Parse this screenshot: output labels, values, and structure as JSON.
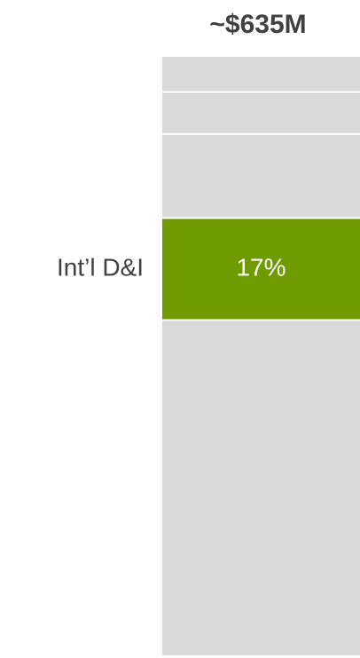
{
  "chart_data": {
    "type": "stacked-bar",
    "title": "~$635M",
    "categories": [
      null
    ],
    "series": [
      {
        "color": "#d9d9da",
        "values": [
          56
        ]
      },
      {
        "name": "Int’l D&I",
        "color": "#6f9a00",
        "values": [
          17
        ],
        "value_labels": [
          "17%"
        ]
      },
      {
        "color": "#d9d9da",
        "values": [
          14
        ]
      },
      {
        "color": "#d9d9da",
        "values": [
          7
        ]
      },
      {
        "color": "#d9d9da",
        "values": [
          6
        ]
      }
    ]
  }
}
